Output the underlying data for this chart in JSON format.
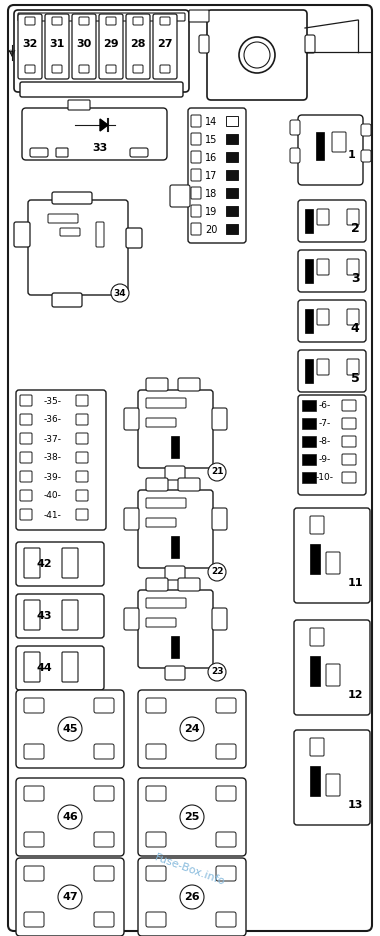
{
  "bg_color": "#ffffff",
  "line_color": "#1a1a1a",
  "watermark": "Fuse-Box.info",
  "watermark_color": "#88bbdd",
  "fig_width": 3.8,
  "fig_height": 9.36,
  "dpi": 100
}
